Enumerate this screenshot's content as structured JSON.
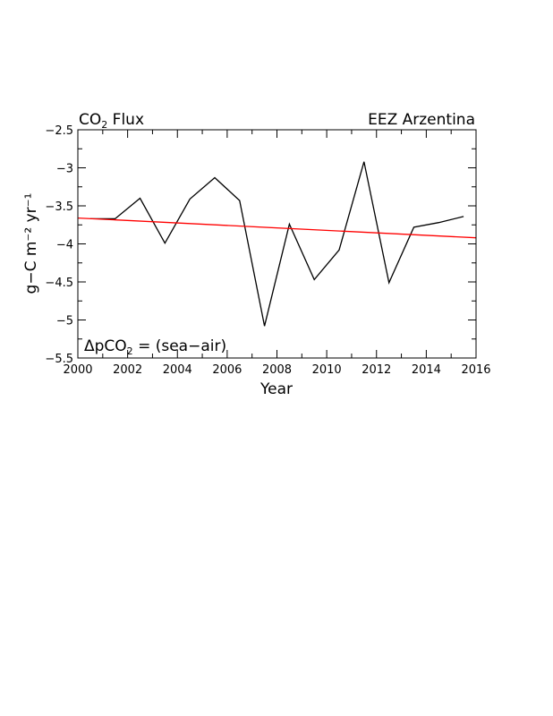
{
  "chart_data": {
    "type": "line",
    "title_left": "CO",
    "title_left_sub": "2",
    "title_left_rest": " Flux",
    "title_right": "EEZ  Arzentina",
    "xlabel": "Year",
    "ylabel": "g−C m⁻² yr⁻¹",
    "xlim": [
      2000,
      2016
    ],
    "ylim": [
      -5.5,
      -2.5
    ],
    "x_ticks": [
      2000,
      2002,
      2004,
      2006,
      2008,
      2010,
      2012,
      2014,
      2016
    ],
    "y_ticks": [
      -2.5,
      -3,
      -3.5,
      -4,
      -4.5,
      -5,
      -5.5
    ],
    "grid": false,
    "annotation_prefix": "ΔpCO",
    "annotation_sub": "2",
    "annotation_rest": " = (sea−air)",
    "series": [
      {
        "color": "#000000",
        "x": [
          2000.5,
          2001.5,
          2002.5,
          2003.5,
          2004.5,
          2005.5,
          2006.5,
          2007.5,
          2008.5,
          2009.5,
          2010.5,
          2011.5,
          2012.5,
          2013.5,
          2014.5,
          2015.5
        ],
        "y": [
          -3.67,
          -3.67,
          -3.4,
          -3.99,
          -3.41,
          -3.13,
          -3.43,
          -5.08,
          -3.74,
          -4.47,
          -4.08,
          -2.92,
          -4.51,
          -3.78,
          -3.72,
          -3.64
        ]
      },
      {
        "color": "#ff0000",
        "x": [
          2000,
          2016
        ],
        "y": [
          -3.66,
          -3.92
        ]
      }
    ]
  }
}
